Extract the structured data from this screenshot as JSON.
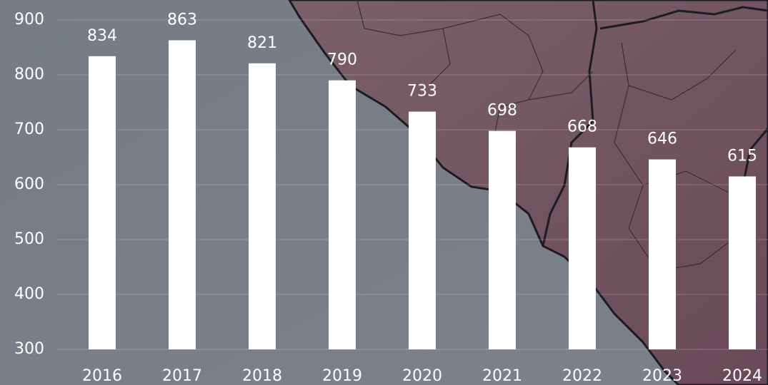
{
  "chart_data": {
    "type": "bar",
    "categories": [
      "2016",
      "2017",
      "2018",
      "2019",
      "2020",
      "2021",
      "2022",
      "2023",
      "2024"
    ],
    "values": [
      834,
      863,
      821,
      790,
      733,
      698,
      668,
      646,
      615
    ],
    "color": "#ffffff",
    "ylim": [
      300,
      900
    ],
    "yticks": [
      300,
      400,
      500,
      600,
      700,
      800,
      900
    ],
    "grid": true
  }
}
